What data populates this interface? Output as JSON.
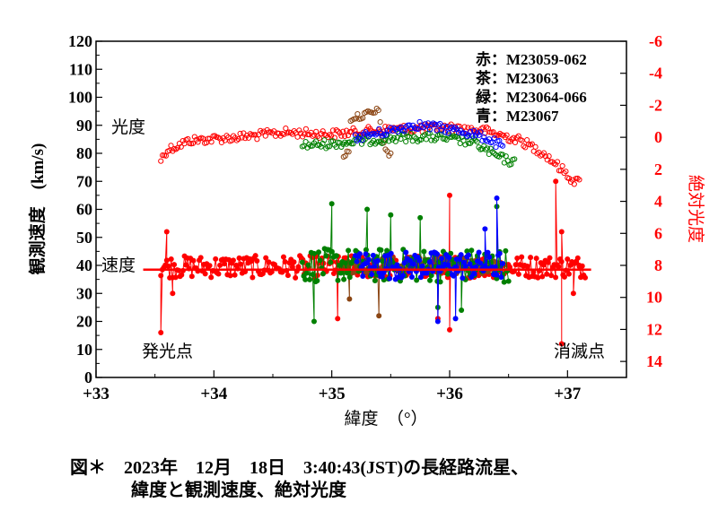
{
  "chart_data": {
    "type": "scatter",
    "title": "",
    "xlabel": "緯度　（°）",
    "ylabel_left": "観測速度　(km/s)",
    "ylabel_right": "絶対光度",
    "xlim": [
      33,
      37.5
    ],
    "ylim_left": [
      0,
      120
    ],
    "ylim_right": [
      -6,
      15
    ],
    "x_ticks": [
      "+33",
      "+34",
      "+35",
      "+36",
      "+37"
    ],
    "x_tick_values": [
      33,
      34,
      35,
      36,
      37
    ],
    "y_left_ticks": [
      0,
      10,
      20,
      30,
      40,
      50,
      60,
      70,
      80,
      90,
      100,
      110,
      120
    ],
    "y_right_ticks": [
      "-6",
      "-4",
      "-2",
      "0",
      "2",
      "4",
      "6",
      "8",
      "10",
      "12",
      "14"
    ],
    "y_right_tick_values": [
      -6,
      -4,
      -2,
      0,
      2,
      4,
      6,
      8,
      10,
      12,
      14
    ],
    "legend": [
      {
        "label": "赤：M23059-062",
        "color": "#ff0000"
      },
      {
        "label": "茶：M23063",
        "color": "#8b4513"
      },
      {
        "label": "緑：M23064-066",
        "color": "#008000"
      },
      {
        "label": "青：M23067",
        "color": "#0000ff"
      }
    ],
    "annotations": {
      "brightness": "光度",
      "speed": "速度",
      "start_point": "発光点",
      "end_point": "消滅点"
    },
    "mean_speed_line": {
      "x": [
        33.4,
        37.2
      ],
      "y": 38.5,
      "color": "#ff0000"
    },
    "series_speed": [
      {
        "name": "赤",
        "color": "#ff0000",
        "x_range": [
          33.55,
          37.15
        ],
        "mean": 39.5,
        "spread": 4,
        "outliers": [
          [
            33.55,
            16
          ],
          [
            33.6,
            52
          ],
          [
            33.65,
            30
          ],
          [
            36.0,
            65
          ],
          [
            36.0,
            17
          ],
          [
            35.9,
            21
          ],
          [
            35.05,
            21
          ],
          [
            36.9,
            70
          ],
          [
            36.95,
            12
          ],
          [
            36.95,
            52
          ],
          [
            37.05,
            30
          ],
          [
            37.1,
            40
          ]
        ]
      },
      {
        "name": "茶",
        "color": "#8b4513",
        "x_range": [
          35.1,
          36.4
        ],
        "mean": 40,
        "spread": 3,
        "outliers": [
          [
            35.4,
            22
          ],
          [
            35.15,
            28
          ]
        ]
      },
      {
        "name": "緑",
        "color": "#008000",
        "x_range": [
          34.75,
          36.5
        ],
        "mean": 40,
        "spread": 6,
        "outliers": [
          [
            35.0,
            62
          ],
          [
            35.3,
            60
          ],
          [
            35.5,
            58
          ],
          [
            35.75,
            57
          ],
          [
            36.4,
            61
          ],
          [
            34.85,
            20
          ],
          [
            35.9,
            25
          ],
          [
            36.1,
            24
          ]
        ]
      },
      {
        "name": "青",
        "color": "#0000ff",
        "x_range": [
          35.2,
          36.45
        ],
        "mean": 40,
        "spread": 5,
        "outliers": [
          [
            36.4,
            64
          ],
          [
            35.9,
            20
          ],
          [
            36.05,
            21
          ],
          [
            36.3,
            53
          ]
        ]
      }
    ],
    "series_brightness": [
      {
        "name": "赤",
        "color": "#ff0000",
        "x_range": [
          33.55,
          37.1
        ],
        "profile": [
          [
            33.55,
            1.4
          ],
          [
            33.6,
            0.8
          ],
          [
            33.8,
            0.2
          ],
          [
            34.2,
            0.0
          ],
          [
            34.6,
            -0.3
          ],
          [
            35.0,
            -0.2
          ],
          [
            35.5,
            -0.5
          ],
          [
            36.0,
            -0.6
          ],
          [
            36.3,
            -0.4
          ],
          [
            36.6,
            0.2
          ],
          [
            36.8,
            1.0
          ],
          [
            36.95,
            2.0
          ],
          [
            37.05,
            2.7
          ],
          [
            37.1,
            2.8
          ]
        ]
      },
      {
        "name": "茶",
        "color": "#8b4513",
        "x_range": [
          35.1,
          35.5
        ],
        "profile": [
          [
            35.15,
            -1.2
          ],
          [
            35.3,
            -1.4
          ],
          [
            35.4,
            -1.6
          ],
          [
            35.45,
            1.0
          ]
        ]
      },
      {
        "name": "緑",
        "color": "#008000",
        "x_range": [
          34.75,
          36.55
        ],
        "profile": [
          [
            34.75,
            0.5
          ],
          [
            35.0,
            0.4
          ],
          [
            35.3,
            0.2
          ],
          [
            35.6,
            0.0
          ],
          [
            35.9,
            0.0
          ],
          [
            36.2,
            0.3
          ],
          [
            36.4,
            1.2
          ],
          [
            36.55,
            1.6
          ]
        ]
      },
      {
        "name": "青",
        "color": "#0000ff",
        "x_range": [
          35.2,
          36.45
        ],
        "profile": [
          [
            35.2,
            0.0
          ],
          [
            35.5,
            -0.4
          ],
          [
            35.7,
            -0.8
          ],
          [
            35.9,
            -0.6
          ],
          [
            36.1,
            -0.4
          ],
          [
            36.3,
            0.0
          ],
          [
            36.45,
            0.6
          ]
        ]
      }
    ]
  },
  "caption": {
    "line1": "図＊　2023年　12月　18日　3:40:43(JST)の長経路流星、",
    "line2": "緯度と観測速度、絶対光度"
  }
}
